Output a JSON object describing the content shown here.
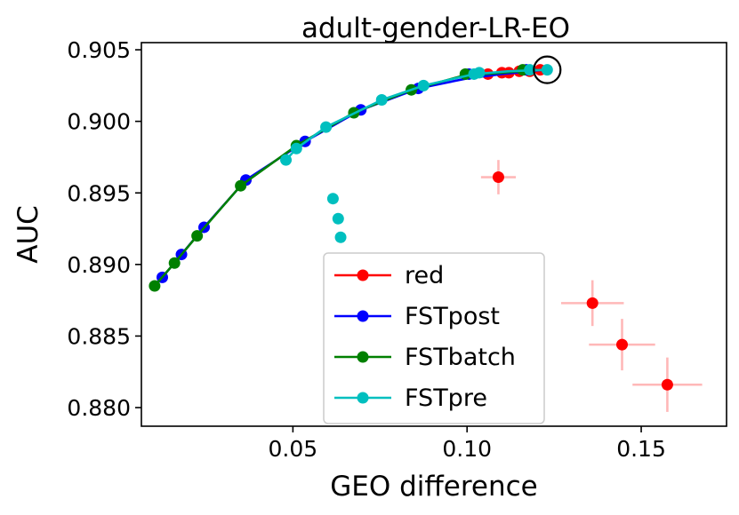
{
  "chart_data": {
    "type": "scatter",
    "title": "adult-gender-LR-EO",
    "xlabel": "GEO difference",
    "ylabel": "AUC",
    "xlim": [
      0.0065,
      0.1745
    ],
    "ylim": [
      0.8787,
      0.9055
    ],
    "xticks": [
      "0.05",
      "0.10",
      "0.15"
    ],
    "xtick_values": [
      0.05,
      0.1,
      0.15
    ],
    "yticks": [
      "0.880",
      "0.885",
      "0.890",
      "0.895",
      "0.900",
      "0.905"
    ],
    "ytick_values": [
      0.88,
      0.885,
      0.89,
      0.895,
      0.9,
      0.905
    ],
    "grid": false,
    "legend_position": "lower-center",
    "series": [
      {
        "name": "red",
        "color": "#ff0000",
        "line": [
          [
            0.1017,
            0.9033
          ],
          [
            0.106,
            0.9033
          ],
          [
            0.108,
            0.9034
          ],
          [
            0.11,
            0.9034
          ],
          [
            0.112,
            0.9034
          ],
          [
            0.115,
            0.9035
          ],
          [
            0.118,
            0.9035
          ],
          [
            0.121,
            0.9036
          ]
        ],
        "points": [
          [
            0.106,
            0.9033
          ],
          [
            0.11,
            0.9034
          ],
          [
            0.112,
            0.9034
          ],
          [
            0.115,
            0.9035
          ],
          [
            0.118,
            0.9035
          ],
          [
            0.121,
            0.9036
          ]
        ],
        "outliers": [
          {
            "x": 0.109,
            "y": 0.8961,
            "xerr": 0.005,
            "yerr": 0.0012
          },
          {
            "x": 0.136,
            "y": 0.8873,
            "xerr": 0.009,
            "yerr": 0.0016
          },
          {
            "x": 0.1445,
            "y": 0.8844,
            "xerr": 0.0095,
            "yerr": 0.0018
          },
          {
            "x": 0.1575,
            "y": 0.8816,
            "xerr": 0.01,
            "yerr": 0.0019
          }
        ]
      },
      {
        "name": "FSTpost",
        "color": "#0000ff",
        "line": [
          [
            0.0125,
            0.8891
          ],
          [
            0.018,
            0.8907
          ],
          [
            0.0245,
            0.8926
          ],
          [
            0.0365,
            0.8959
          ],
          [
            0.0535,
            0.8986
          ],
          [
            0.0695,
            0.9008
          ],
          [
            0.086,
            0.9023
          ],
          [
            0.1,
            0.903
          ],
          [
            0.11,
            0.9033
          ],
          [
            0.122,
            0.9036
          ]
        ],
        "points": [
          [
            0.0125,
            0.8891
          ],
          [
            0.018,
            0.8907
          ],
          [
            0.0245,
            0.8926
          ],
          [
            0.0365,
            0.8959
          ],
          [
            0.0535,
            0.8986
          ],
          [
            0.0695,
            0.9008
          ],
          [
            0.086,
            0.9023
          ],
          [
            0.1005,
            0.9033
          ],
          [
            0.117,
            0.9036
          ]
        ],
        "outliers": []
      },
      {
        "name": "FSTbatch",
        "color": "#008000",
        "line": [
          [
            0.0103,
            0.8885
          ],
          [
            0.016,
            0.8901
          ],
          [
            0.0225,
            0.892
          ],
          [
            0.035,
            0.8955
          ],
          [
            0.051,
            0.8983
          ],
          [
            0.0675,
            0.9006
          ],
          [
            0.084,
            0.9022
          ],
          [
            0.099,
            0.9032
          ],
          [
            0.11,
            0.9034
          ],
          [
            0.12,
            0.9036
          ]
        ],
        "points": [
          [
            0.0103,
            0.8885
          ],
          [
            0.016,
            0.8901
          ],
          [
            0.0225,
            0.892
          ],
          [
            0.035,
            0.8955
          ],
          [
            0.051,
            0.8983
          ],
          [
            0.0675,
            0.9006
          ],
          [
            0.084,
            0.9022
          ],
          [
            0.0995,
            0.9033
          ],
          [
            0.116,
            0.9036
          ]
        ],
        "outliers": []
      },
      {
        "name": "FSTpre",
        "color": "#00bfbf",
        "line": [
          [
            0.048,
            0.8973
          ],
          [
            0.051,
            0.8981
          ],
          [
            0.0595,
            0.8996
          ],
          [
            0.0755,
            0.9015
          ],
          [
            0.0875,
            0.9025
          ],
          [
            0.102,
            0.9033
          ],
          [
            0.112,
            0.9035
          ],
          [
            0.123,
            0.9036
          ]
        ],
        "points": [
          [
            0.048,
            0.8973
          ],
          [
            0.051,
            0.8981
          ],
          [
            0.0595,
            0.8996
          ],
          [
            0.0755,
            0.9015
          ],
          [
            0.0875,
            0.9025
          ],
          [
            0.102,
            0.9033
          ],
          [
            0.1035,
            0.9034
          ],
          [
            0.118,
            0.9036
          ],
          [
            0.123,
            0.9036
          ],
          [
            0.0615,
            0.8946
          ],
          [
            0.063,
            0.8932
          ],
          [
            0.0637,
            0.8919
          ]
        ],
        "outliers": []
      }
    ],
    "highlight": {
      "x": 0.123,
      "y": 0.9036,
      "shape": "circle"
    }
  }
}
